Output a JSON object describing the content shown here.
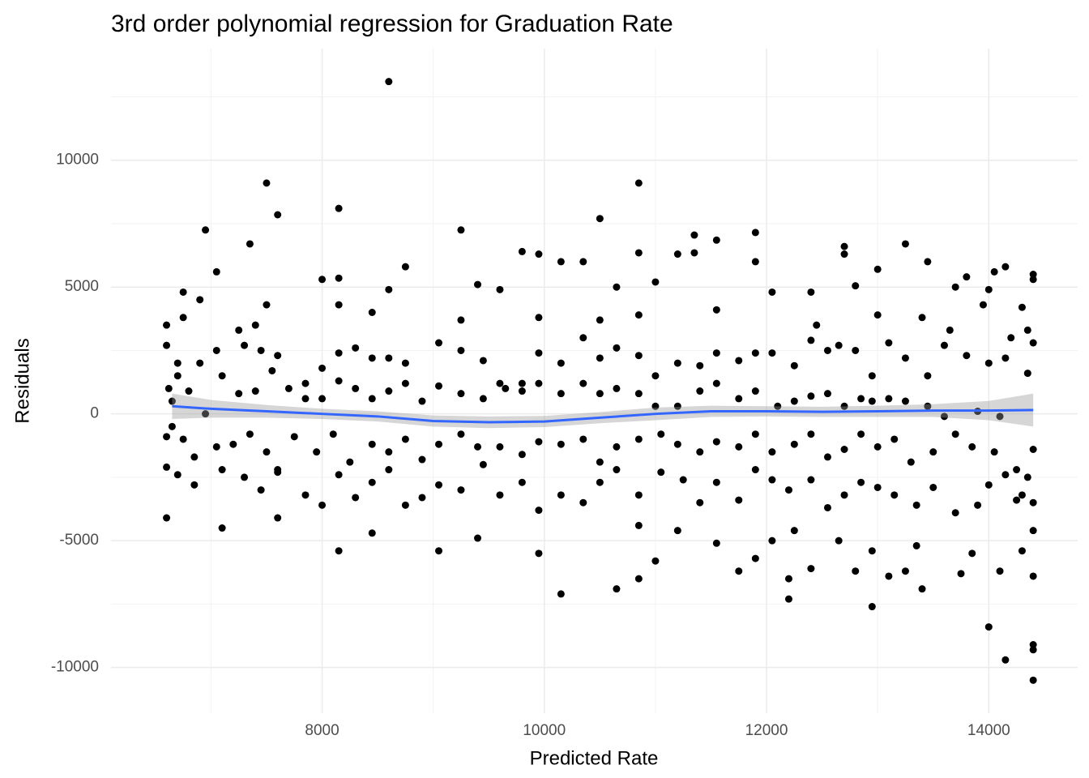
{
  "chart_data": {
    "type": "scatter",
    "title": "3rd order polynomial regression for Graduation Rate",
    "x_label": "Predicted Rate",
    "y_label": "Residuals",
    "xlim": [
      6100,
      14800
    ],
    "ylim": [
      -11800,
      14400
    ],
    "xticks": [
      8000,
      10000,
      12000,
      14000
    ],
    "yticks": [
      -10000,
      -5000,
      0,
      5000,
      10000
    ],
    "minor_xticks": [
      7000,
      9000,
      11000,
      13000
    ],
    "minor_yticks": [
      -7500,
      -2500,
      2500,
      7500,
      12500
    ],
    "grid": true,
    "color": "#000000",
    "x": [
      8600,
      7500,
      10850,
      8150,
      7600,
      6950,
      9250,
      10500,
      11900,
      11350,
      11550,
      12700,
      13250,
      7350,
      10850,
      9800,
      9950,
      11200,
      11350,
      13450,
      11900,
      10150,
      10350,
      7050,
      8000,
      8150,
      8750,
      12700,
      13000,
      14150,
      14400,
      14050,
      12400,
      12800,
      13700,
      12050,
      10650,
      8600,
      9600,
      9400,
      11000,
      6750,
      6900,
      7500,
      8450,
      13950,
      14300,
      14400,
      13800,
      14000,
      6600,
      6750,
      7250,
      7400,
      8150,
      9250,
      9950,
      10500,
      10850,
      11550,
      12450,
      13000,
      13400,
      13650,
      14200,
      14350,
      6600,
      6700,
      6900,
      7050,
      7300,
      7450,
      7600,
      7850,
      8000,
      8150,
      8300,
      8450,
      8600,
      8750,
      9050,
      9250,
      9450,
      9600,
      9800,
      9950,
      10150,
      10350,
      10500,
      10650,
      10850,
      11000,
      11200,
      11400,
      11550,
      11750,
      11900,
      12050,
      12250,
      12400,
      12550,
      12650,
      12800,
      12950,
      13100,
      13250,
      13450,
      13600,
      13800,
      14000,
      14150,
      14400,
      14350,
      6620,
      6650,
      6700,
      6800,
      6950,
      7100,
      7250,
      7400,
      7550,
      7700,
      7850,
      8000,
      8150,
      8300,
      8450,
      8600,
      8750,
      8900,
      9050,
      9250,
      9450,
      9650,
      9800,
      9950,
      10150,
      10350,
      10500,
      10650,
      10850,
      11000,
      11200,
      11400,
      11550,
      11750,
      11900,
      12100,
      12250,
      12400,
      12550,
      12700,
      12850,
      12950,
      13100,
      13250,
      13450,
      13600,
      13900,
      6600,
      6650,
      6750,
      6850,
      7050,
      7200,
      7350,
      7500,
      7600,
      7750,
      7950,
      8100,
      8250,
      8450,
      8600,
      8750,
      8900,
      9050,
      9250,
      9400,
      9600,
      9800,
      9950,
      10150,
      10350,
      10500,
      10650,
      10850,
      11050,
      11200,
      11400,
      11550,
      11750,
      11900,
      12050,
      12250,
      12400,
      12550,
      12700,
      12850,
      13000,
      13150,
      13300,
      13500,
      13700,
      13850,
      14050,
      14250,
      14400,
      14100,
      6600,
      6700,
      6850,
      7100,
      7300,
      7450,
      7600,
      7850,
      8000,
      8150,
      8300,
      8450,
      8600,
      8750,
      8900,
      9050,
      9250,
      9450,
      9600,
      9800,
      9950,
      10150,
      10350,
      10500,
      10650,
      10850,
      11050,
      11250,
      11400,
      11550,
      11750,
      11900,
      12050,
      12200,
      12400,
      12550,
      12700,
      12850,
      13000,
      13150,
      13350,
      13500,
      13700,
      13900,
      14000,
      14150,
      14250,
      14400,
      14350,
      14300,
      6600,
      7100,
      7600,
      8150,
      8450,
      9050,
      9400,
      9950,
      10150,
      10650,
      10850,
      11000,
      11200,
      11550,
      11750,
      11900,
      12050,
      12200,
      12200,
      12400,
      12650,
      12800,
      12950,
      12950,
      13100,
      13250,
      13400,
      13750,
      13850,
      14000,
      14100,
      14150,
      14400,
      14400,
      14400,
      14400,
      14400,
      14300,
      13350,
      12250,
      10850
    ],
    "values": [
      13100,
      9100,
      9100,
      8100,
      7850,
      7250,
      7250,
      7700,
      7150,
      7050,
      6850,
      6600,
      6700,
      6700,
      6350,
      6400,
      6300,
      6300,
      6350,
      6000,
      6000,
      6000,
      6000,
      5600,
      5300,
      5350,
      5800,
      6300,
      5700,
      5800,
      5500,
      5600,
      4800,
      5050,
      5000,
      4800,
      5000,
      4900,
      4900,
      5100,
      5200,
      4800,
      4500,
      4300,
      4000,
      4300,
      4200,
      5300,
      5400,
      4900,
      3500,
      3800,
      3300,
      3500,
      4300,
      3700,
      3800,
      3700,
      3900,
      4100,
      3500,
      3900,
      3800,
      3300,
      3000,
      3300,
      2700,
      2000,
      2000,
      2500,
      2700,
      2500,
      2300,
      1200,
      1800,
      2400,
      2600,
      2200,
      2200,
      2000,
      2800,
      2500,
      2100,
      1200,
      1200,
      2400,
      2000,
      3000,
      2200,
      2600,
      2300,
      1500,
      2000,
      1900,
      2400,
      2100,
      2400,
      2400,
      1900,
      2900,
      2500,
      2700,
      2500,
      1500,
      2800,
      2200,
      1500,
      2700,
      2300,
      2000,
      2200,
      2800,
      1600,
      1000,
      500,
      1500,
      900,
      0,
      1500,
      800,
      900,
      1700,
      1000,
      600,
      600,
      1300,
      1000,
      600,
      900,
      1200,
      500,
      1100,
      800,
      600,
      1000,
      900,
      1200,
      800,
      1200,
      800,
      1000,
      800,
      300,
      300,
      900,
      1200,
      600,
      900,
      300,
      500,
      700,
      800,
      300,
      600,
      500,
      600,
      500,
      300,
      -100,
      100,
      -900,
      -500,
      -1000,
      -1700,
      -1300,
      -1200,
      -800,
      -1500,
      -2200,
      -900,
      -1500,
      -800,
      -1900,
      -1200,
      -1500,
      -1000,
      -1800,
      -1200,
      -800,
      -1300,
      -1300,
      -1600,
      -1100,
      -1200,
      -1000,
      -1900,
      -1300,
      -1000,
      -800,
      -1200,
      -1500,
      -1100,
      -1300,
      -800,
      -1500,
      -1200,
      -800,
      -1700,
      -1400,
      -800,
      -1300,
      -1000,
      -1900,
      -1500,
      -800,
      -1300,
      -1500,
      -2200,
      -1400,
      -100,
      -2100,
      -2400,
      -2800,
      -2200,
      -2500,
      -3000,
      -2300,
      -3200,
      -3600,
      -2400,
      -3300,
      -2700,
      -2200,
      -3600,
      -3300,
      -2800,
      -3000,
      -2000,
      -3200,
      -2700,
      -3800,
      -3200,
      -3500,
      -2700,
      -2200,
      -3200,
      -2300,
      -2600,
      -3500,
      -2700,
      -3400,
      -2200,
      -2600,
      -3000,
      -2600,
      -3700,
      -3200,
      -2700,
      -2900,
      -3200,
      -3600,
      -2900,
      -3900,
      -3600,
      -2800,
      -2400,
      -3400,
      -3500,
      -2500,
      -3200,
      -4100,
      -4500,
      -4100,
      -5400,
      -4700,
      -5400,
      -4900,
      -5500,
      -7100,
      -6900,
      -6500,
      -5800,
      -4600,
      -5100,
      -6200,
      -5700,
      -5000,
      -7300,
      -6500,
      -6100,
      -5000,
      -6200,
      -7600,
      -5400,
      -6400,
      -6200,
      -6900,
      -6300,
      -5500,
      -8400,
      -6200,
      -9700,
      -10500,
      -9300,
      -9100,
      -6400,
      -4600,
      -5400,
      -5200,
      -4600,
      -4400
    ],
    "smooth": {
      "color": "#3366ff",
      "band_color": "#999999",
      "x": [
        6650,
        7000,
        7500,
        8000,
        8500,
        9000,
        9500,
        10000,
        10500,
        11000,
        11500,
        12000,
        12500,
        13000,
        13500,
        14000,
        14400
      ],
      "values": [
        300,
        200,
        100,
        0,
        -100,
        -280,
        -330,
        -300,
        -150,
        0,
        100,
        100,
        80,
        100,
        130,
        130,
        150
      ],
      "lower": [
        -200,
        -150,
        -150,
        -200,
        -300,
        -500,
        -560,
        -520,
        -370,
        -250,
        -120,
        -100,
        -120,
        -120,
        -120,
        -250,
        -500
      ],
      "upper": [
        800,
        550,
        350,
        200,
        100,
        -60,
        -100,
        -80,
        70,
        250,
        320,
        300,
        280,
        320,
        380,
        510,
        800
      ]
    }
  }
}
